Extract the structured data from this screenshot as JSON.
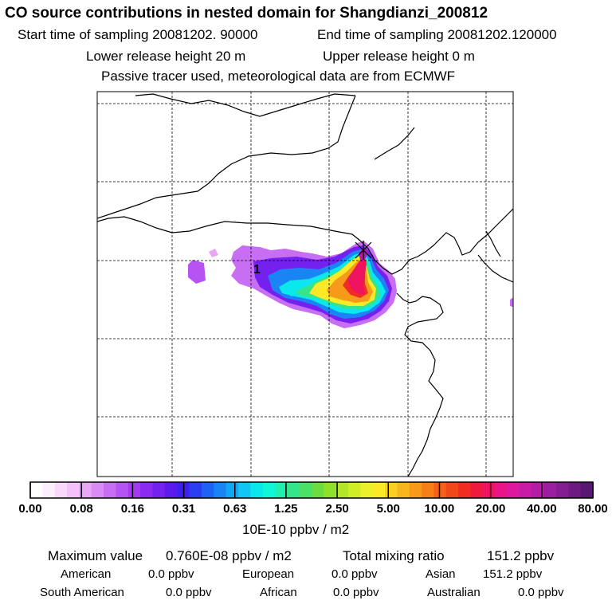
{
  "header": {
    "title": "CO  source contributions in nested domain for Shangdianzi_200812",
    "start_label": "Start time of sampling 20081202. 90000",
    "end_label": "End time of sampling 20081202.120000",
    "lower_label": "Lower release height   20 m",
    "upper_label": "Upper release height    0 m",
    "info": "Passive tracer used, meteorological data are from ECMWF"
  },
  "chart_data": {
    "type": "heatmap",
    "map_label": "1",
    "receptor": "Shangdianzi",
    "colorbar": {
      "ticks": [
        "0.00",
        "0.08",
        "0.16",
        "0.31",
        "0.63",
        "1.25",
        "2.50",
        "5.00",
        "10.00",
        "20.00",
        "40.00",
        "80.00"
      ],
      "unit": "10E-10 ppbv / m2",
      "colors": [
        "#ffffff",
        "#fdeefd",
        "#f8d8fb",
        "#f3c2f8",
        "#e9a6f6",
        "#d98af4",
        "#c86ef3",
        "#b653f2",
        "#a33af1",
        "#8a2bef",
        "#7420ee",
        "#5a1aee",
        "#3f1ff0",
        "#2a3ef2",
        "#1e62f4",
        "#1a84f5",
        "#13a6f5",
        "#10c6f3",
        "#0ce7ee",
        "#0ff7d8",
        "#20efb0",
        "#35e58a",
        "#4be066",
        "#6adc3f",
        "#8ee02b",
        "#b3e628",
        "#d2ec28",
        "#ecf02a",
        "#fbe826",
        "#fbcf20",
        "#f9b51c",
        "#f79a19",
        "#f57e18",
        "#f36218",
        "#f24719",
        "#f12c22",
        "#ef1a3d",
        "#ee1460",
        "#ea1488",
        "#dc18a1",
        "#c81ba8",
        "#b21da6",
        "#9c1d9f",
        "#861c93",
        "#6e1a83",
        "#581771"
      ]
    },
    "stats": {
      "max_label": "Maximum value",
      "max_value": "0.760E-08 ppbv / m2",
      "total_label": "Total mixing ratio",
      "total_value": "151.2 ppbv"
    },
    "regions": [
      {
        "name": "American",
        "value": "0.0 ppbv"
      },
      {
        "name": "European",
        "value": "0.0 ppbv"
      },
      {
        "name": "Asian",
        "value": "151.2 ppbv"
      },
      {
        "name": "South American",
        "value": "0.0 ppbv"
      },
      {
        "name": "African",
        "value": "0.0 ppbv"
      },
      {
        "name": "Australian",
        "value": "0.0 ppbv"
      }
    ]
  }
}
